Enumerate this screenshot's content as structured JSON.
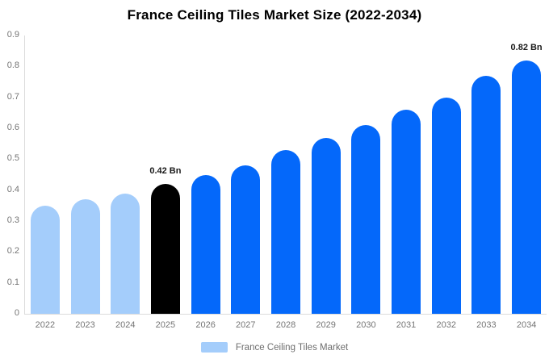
{
  "title": "France Ceiling Tiles Market Size (2022-2034)",
  "colors": {
    "historical": "#a4cdfb",
    "base_year": "#000000",
    "forecast": "#0468fa",
    "axis_line": "#dcdcdc",
    "tick_text": "#757575",
    "annotation_text": "#1a1a1a",
    "title_text": "#000000"
  },
  "chart_data": {
    "type": "bar",
    "title": "France Ceiling Tiles Market Size (2022-2034)",
    "unit": "Bn",
    "xlabel": "",
    "ylabel": "",
    "ylim": [
      0,
      0.9
    ],
    "ytick_labels": [
      "0",
      "0.1",
      "0.2",
      "0.3",
      "0.4",
      "0.5",
      "0.6",
      "0.7",
      "0.8",
      "0.9"
    ],
    "ytick_values": [
      0,
      0.1,
      0.2,
      0.3,
      0.4,
      0.5,
      0.6,
      0.7,
      0.8,
      0.9
    ],
    "grid": false,
    "categories": [
      2022,
      2023,
      2024,
      2025,
      2026,
      2027,
      2028,
      2029,
      2030,
      2031,
      2032,
      2033,
      2034
    ],
    "values": [
      0.35,
      0.37,
      0.39,
      0.42,
      0.45,
      0.48,
      0.53,
      0.57,
      0.61,
      0.66,
      0.7,
      0.77,
      0.82
    ],
    "point_colors": [
      "historical",
      "historical",
      "historical",
      "base_year",
      "forecast",
      "forecast",
      "forecast",
      "forecast",
      "forecast",
      "forecast",
      "forecast",
      "forecast",
      "forecast"
    ],
    "annotations": [
      {
        "year": 2025,
        "text": "0.42 Bn"
      },
      {
        "year": 2034,
        "text": "0.82 Bn"
      }
    ],
    "legend": {
      "position": "bottom",
      "label": "France Ceiling Tiles Market",
      "swatch_color": "#a4cdfb"
    }
  }
}
